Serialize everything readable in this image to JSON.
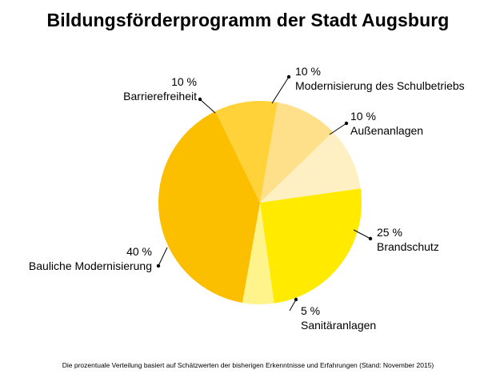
{
  "chart_data": {
    "type": "pie",
    "title": "Bildungsförderprogramm der Stadt Augsburg",
    "footnote": "Die prozentuale Verteilung basiert auf Schätzwerten der bisherigen Erkenntnisse und Erfahrungen (Stand: November 2015)",
    "slices": [
      {
        "label": "Modernisierung des Schulbetriebs",
        "value": 10,
        "value_label": "10 %",
        "color": "#FFE08A"
      },
      {
        "label": "Außenanlagen",
        "value": 10,
        "value_label": "10 %",
        "color": "#FFF0C4"
      },
      {
        "label": "Brandschutz",
        "value": 25,
        "value_label": "25 %",
        "color": "#FFEA00"
      },
      {
        "label": "Sanitäranlagen",
        "value": 5,
        "value_label": "5 %",
        "color": "#FFF38C"
      },
      {
        "label": "Bauliche Modernisierung",
        "value": 40,
        "value_label": "40 %",
        "color": "#FBBF00"
      },
      {
        "label": "Barrierefreiheit",
        "value": 10,
        "value_label": "10 %",
        "color": "#FFD23A"
      }
    ]
  }
}
